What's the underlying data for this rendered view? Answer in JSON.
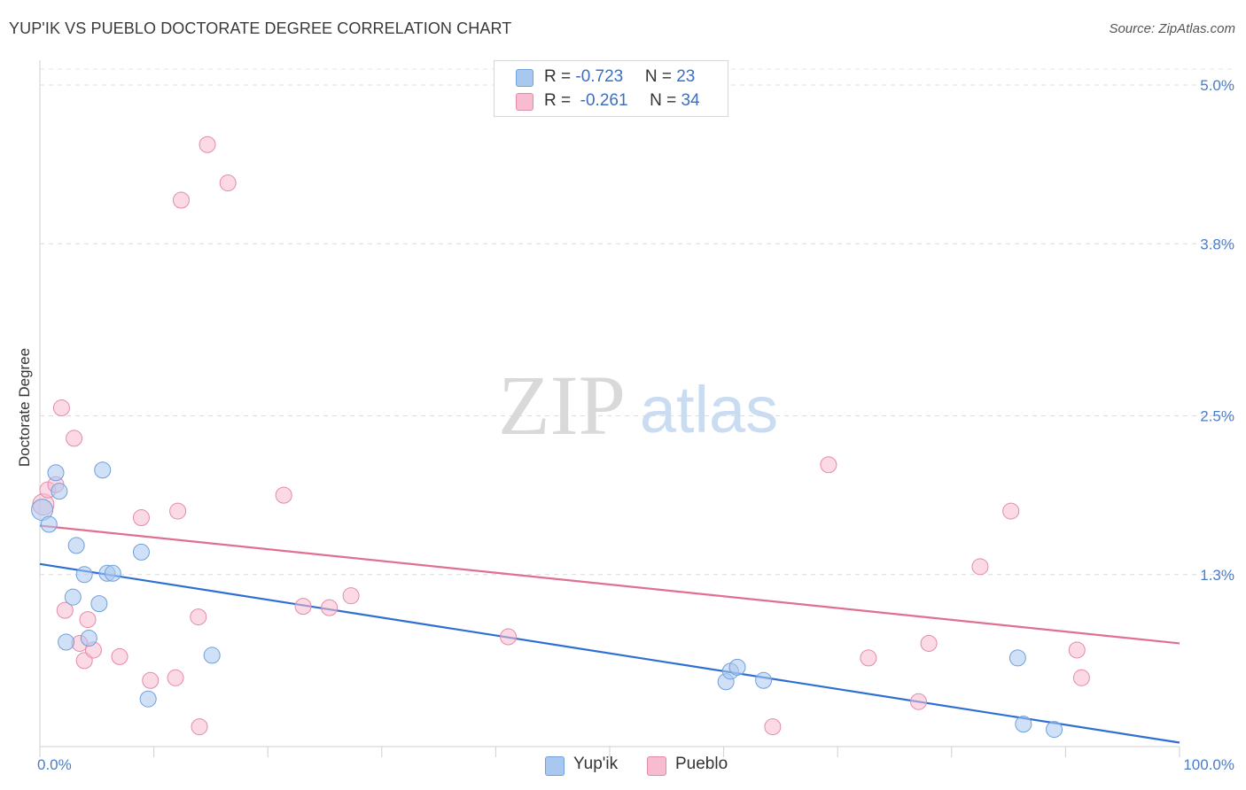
{
  "chart_data": {
    "type": "scatter",
    "title": "YUP'IK VS PUEBLO DOCTORATE DEGREE CORRELATION CHART",
    "source": "Source: ZipAtlas.com",
    "xlabel": "",
    "ylabel": "Doctorate Degree",
    "xlim": [
      0,
      100
    ],
    "ylim": [
      0,
      5.2
    ],
    "x_tick_labels": [
      "0.0%",
      "100.0%"
    ],
    "y_ticks": [
      {
        "value": 5.0,
        "label": "5.0%"
      },
      {
        "value": 3.8,
        "label": "3.8%"
      },
      {
        "value": 2.5,
        "label": "2.5%"
      },
      {
        "value": 1.3,
        "label": "1.3%"
      }
    ],
    "watermark": {
      "zip": "ZIP",
      "atlas": "atlas"
    },
    "legend": {
      "rows": [
        {
          "r_label": "R = ",
          "r_value": "-0.723",
          "n_label": "N = ",
          "n_value": "23"
        },
        {
          "r_label": "R = ",
          "r_value": "-0.261",
          "n_label": "N = ",
          "n_value": "34"
        }
      ]
    },
    "series": [
      {
        "name": "Yup'ik",
        "color": "#a9c8f0",
        "stroke": "#6f9fdc",
        "line_color": "#2e6fd3",
        "trend": {
          "x0": 0,
          "y0": 1.38,
          "x1": 100,
          "y1": 0.03
        },
        "points": [
          [
            0.2,
            1.79
          ],
          [
            0.8,
            1.68
          ],
          [
            1.4,
            2.07
          ],
          [
            1.7,
            1.93
          ],
          [
            2.3,
            0.79
          ],
          [
            2.9,
            1.13
          ],
          [
            3.2,
            1.52
          ],
          [
            3.9,
            1.3
          ],
          [
            4.3,
            0.82
          ],
          [
            5.2,
            1.08
          ],
          [
            5.5,
            2.09
          ],
          [
            5.9,
            1.31
          ],
          [
            6.4,
            1.31
          ],
          [
            8.9,
            1.47
          ],
          [
            9.5,
            0.36
          ],
          [
            15.1,
            0.69
          ],
          [
            60.2,
            0.49
          ],
          [
            60.6,
            0.57
          ],
          [
            61.2,
            0.6
          ],
          [
            63.5,
            0.5
          ],
          [
            85.8,
            0.67
          ],
          [
            86.3,
            0.17
          ],
          [
            89.0,
            0.13
          ]
        ]
      },
      {
        "name": "Pueblo",
        "color": "#f7bcd0",
        "stroke": "#e48aa9",
        "line_color": "#e0708f",
        "trend": {
          "x0": 0,
          "y0": 1.67,
          "x1": 100,
          "y1": 0.78
        },
        "points": [
          [
            0.3,
            1.83
          ],
          [
            0.7,
            1.94
          ],
          [
            1.4,
            1.98
          ],
          [
            1.9,
            2.56
          ],
          [
            2.2,
            1.03
          ],
          [
            3.0,
            2.33
          ],
          [
            3.5,
            0.78
          ],
          [
            3.9,
            0.65
          ],
          [
            4.2,
            0.96
          ],
          [
            4.7,
            0.73
          ],
          [
            7.0,
            0.68
          ],
          [
            8.9,
            1.73
          ],
          [
            9.7,
            0.5
          ],
          [
            11.9,
            0.52
          ],
          [
            12.4,
            4.13
          ],
          [
            13.9,
            0.98
          ],
          [
            14.0,
            0.15
          ],
          [
            14.7,
            4.55
          ],
          [
            16.5,
            4.26
          ],
          [
            21.4,
            1.9
          ],
          [
            23.1,
            1.06
          ],
          [
            25.4,
            1.05
          ],
          [
            27.3,
            1.14
          ],
          [
            41.1,
            0.83
          ],
          [
            64.3,
            0.15
          ],
          [
            69.2,
            2.13
          ],
          [
            72.7,
            0.67
          ],
          [
            77.1,
            0.34
          ],
          [
            78.0,
            0.78
          ],
          [
            82.5,
            1.36
          ],
          [
            85.2,
            1.78
          ],
          [
            91.0,
            0.73
          ],
          [
            91.4,
            0.52
          ],
          [
            12.1,
            1.78
          ]
        ]
      }
    ]
  }
}
